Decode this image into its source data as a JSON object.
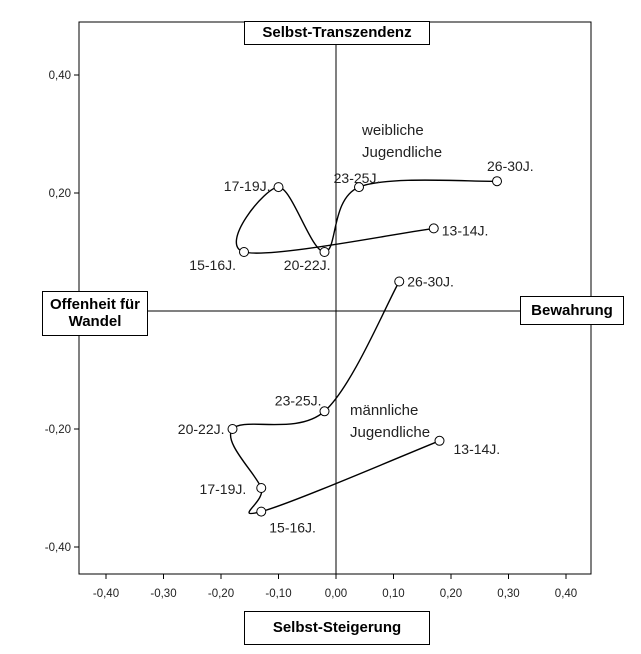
{
  "chart_data": {
    "type": "line",
    "xlabel": "Selbst-Steigerung",
    "ylabel": "Selbst-Transzendenz",
    "axis_labels": {
      "top": "Selbst-Transzendenz",
      "bottom": "Selbst-Steigerung",
      "left": "Offenheit für Wandel",
      "right": "Bewahrung"
    },
    "xlim": [
      -0.45,
      0.45
    ],
    "ylim": [
      -0.45,
      0.45
    ],
    "x_ticks": [
      -0.4,
      -0.3,
      -0.2,
      -0.1,
      0.0,
      0.1,
      0.2,
      0.3,
      0.4
    ],
    "x_tick_labels": [
      "-0,40",
      "-0,30",
      "-0,20",
      "-0,10",
      "0,00",
      "0,10",
      "0,20",
      "0,30",
      "0,40"
    ],
    "y_ticks": [
      0.4,
      0.2,
      -0.2,
      -0.4
    ],
    "y_tick_labels": [
      "0,40",
      "0,20",
      "-0,20",
      "-0,40"
    ],
    "grid": false,
    "series": [
      {
        "name": "weibliche Jugendliche",
        "group_label": [
          "weibliche",
          "Jugendliche"
        ],
        "points": [
          {
            "label": "13-14J.",
            "x": 0.17,
            "y": 0.14
          },
          {
            "label": "15-16J.",
            "x": -0.16,
            "y": 0.1
          },
          {
            "label": "17-19J.",
            "x": -0.1,
            "y": 0.21
          },
          {
            "label": "20-22J.",
            "x": -0.02,
            "y": 0.1
          },
          {
            "label": "23-25J.",
            "x": 0.04,
            "y": 0.21
          },
          {
            "label": "26-30J.",
            "x": 0.28,
            "y": 0.22
          }
        ]
      },
      {
        "name": "männliche Jugendliche",
        "group_label": [
          "männliche",
          "Jugendliche"
        ],
        "points": [
          {
            "label": "13-14J.",
            "x": 0.18,
            "y": -0.22
          },
          {
            "label": "15-16J.",
            "x": -0.13,
            "y": -0.34
          },
          {
            "label": "17-19J.",
            "x": -0.13,
            "y": -0.3
          },
          {
            "label": "20-22J.",
            "x": -0.18,
            "y": -0.2
          },
          {
            "label": "23-25J.",
            "x": -0.02,
            "y": -0.17
          },
          {
            "label": "26-30J.",
            "x": 0.11,
            "y": 0.05
          }
        ]
      }
    ]
  }
}
